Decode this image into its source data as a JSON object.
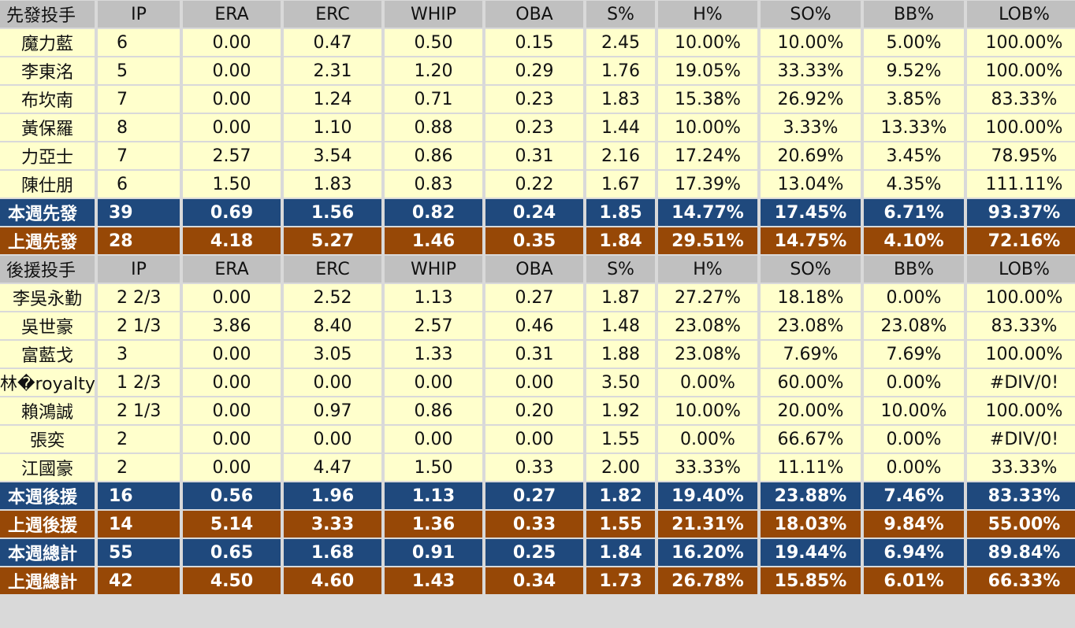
{
  "columns": [
    "IP",
    "ERA",
    "ERC",
    "WHIP",
    "OBA",
    "S%",
    "H%",
    "SO%",
    "BB%",
    "LOB%"
  ],
  "sections": [
    {
      "header": "先發投手",
      "rows": [
        [
          "魔力藍",
          "6",
          "0.00",
          "0.47",
          "0.50",
          "0.15",
          "2.45",
          "10.00%",
          "10.00%",
          "5.00%",
          "100.00%"
        ],
        [
          "李東洺",
          "5",
          "0.00",
          "2.31",
          "1.20",
          "0.29",
          "1.76",
          "19.05%",
          "33.33%",
          "9.52%",
          "100.00%"
        ],
        [
          "布坎南",
          "7",
          "0.00",
          "1.24",
          "0.71",
          "0.23",
          "1.83",
          "15.38%",
          "26.92%",
          "3.85%",
          "83.33%"
        ],
        [
          "黃保羅",
          "8",
          "0.00",
          "1.10",
          "0.88",
          "0.23",
          "1.44",
          "10.00%",
          "3.33%",
          "13.33%",
          "100.00%"
        ],
        [
          "力亞士",
          "7",
          "2.57",
          "3.54",
          "0.86",
          "0.31",
          "2.16",
          "17.24%",
          "20.69%",
          "3.45%",
          "78.95%"
        ],
        [
          "陳仕朋",
          "6",
          "1.50",
          "1.83",
          "0.83",
          "0.22",
          "1.67",
          "17.39%",
          "13.04%",
          "4.35%",
          "111.11%"
        ]
      ],
      "totals": [
        {
          "type": "cur",
          "cells": [
            "本週先發",
            "39",
            "0.69",
            "1.56",
            "0.82",
            "0.24",
            "1.85",
            "14.77%",
            "17.45%",
            "6.71%",
            "93.37%"
          ]
        },
        {
          "type": "prev",
          "cells": [
            "上週先發",
            "28",
            "4.18",
            "5.27",
            "1.46",
            "0.35",
            "1.84",
            "29.51%",
            "14.75%",
            "4.10%",
            "72.16%"
          ]
        }
      ]
    },
    {
      "header": "後援投手",
      "rows": [
        [
          "李吳永勤",
          "2 2/3",
          "0.00",
          "2.52",
          "1.13",
          "0.27",
          "1.87",
          "27.27%",
          "18.18%",
          "0.00%",
          "100.00%"
        ],
        [
          "吳世豪",
          "2 1/3",
          "3.86",
          "8.40",
          "2.57",
          "0.46",
          "1.48",
          "23.08%",
          "23.08%",
          "23.08%",
          "83.33%"
        ],
        [
          "富藍戈",
          "3",
          "0.00",
          "3.05",
          "1.33",
          "0.31",
          "1.88",
          "23.08%",
          "7.69%",
          "7.69%",
          "100.00%"
        ],
        [
          "林�royalty",
          "1 2/3",
          "0.00",
          "0.00",
          "0.00",
          "0.00",
          "3.50",
          "0.00%",
          "60.00%",
          "0.00%",
          "#DIV/0!"
        ],
        [
          "賴鴻誠",
          "2 1/3",
          "0.00",
          "0.97",
          "0.86",
          "0.20",
          "1.92",
          "10.00%",
          "20.00%",
          "10.00%",
          "100.00%"
        ],
        [
          "張奕",
          "2",
          "0.00",
          "0.00",
          "0.00",
          "0.00",
          "1.55",
          "0.00%",
          "66.67%",
          "0.00%",
          "#DIV/0!"
        ],
        [
          "江國豪",
          "2",
          "0.00",
          "4.47",
          "1.50",
          "0.33",
          "2.00",
          "33.33%",
          "11.11%",
          "0.00%",
          "33.33%"
        ]
      ],
      "totals": [
        {
          "type": "cur",
          "cells": [
            "本週後援",
            "16",
            "0.56",
            "1.96",
            "1.13",
            "0.27",
            "1.82",
            "19.40%",
            "23.88%",
            "7.46%",
            "83.33%"
          ]
        },
        {
          "type": "prev",
          "cells": [
            "上週後援",
            "14",
            "5.14",
            "3.33",
            "1.36",
            "0.33",
            "1.55",
            "21.31%",
            "18.03%",
            "9.84%",
            "55.00%"
          ]
        },
        {
          "type": "cur",
          "cells": [
            "本週總計",
            "55",
            "0.65",
            "1.68",
            "0.91",
            "0.25",
            "1.84",
            "16.20%",
            "19.44%",
            "6.94%",
            "89.84%"
          ]
        },
        {
          "type": "prev",
          "cells": [
            "上週總計",
            "42",
            "4.50",
            "4.60",
            "1.43",
            "0.34",
            "1.73",
            "26.78%",
            "15.85%",
            "6.01%",
            "66.33%"
          ]
        }
      ]
    }
  ],
  "colors": {
    "header": "#c0c0c0",
    "row": "#ffffcc",
    "this_week": "#1f497d",
    "last_week": "#974806"
  }
}
